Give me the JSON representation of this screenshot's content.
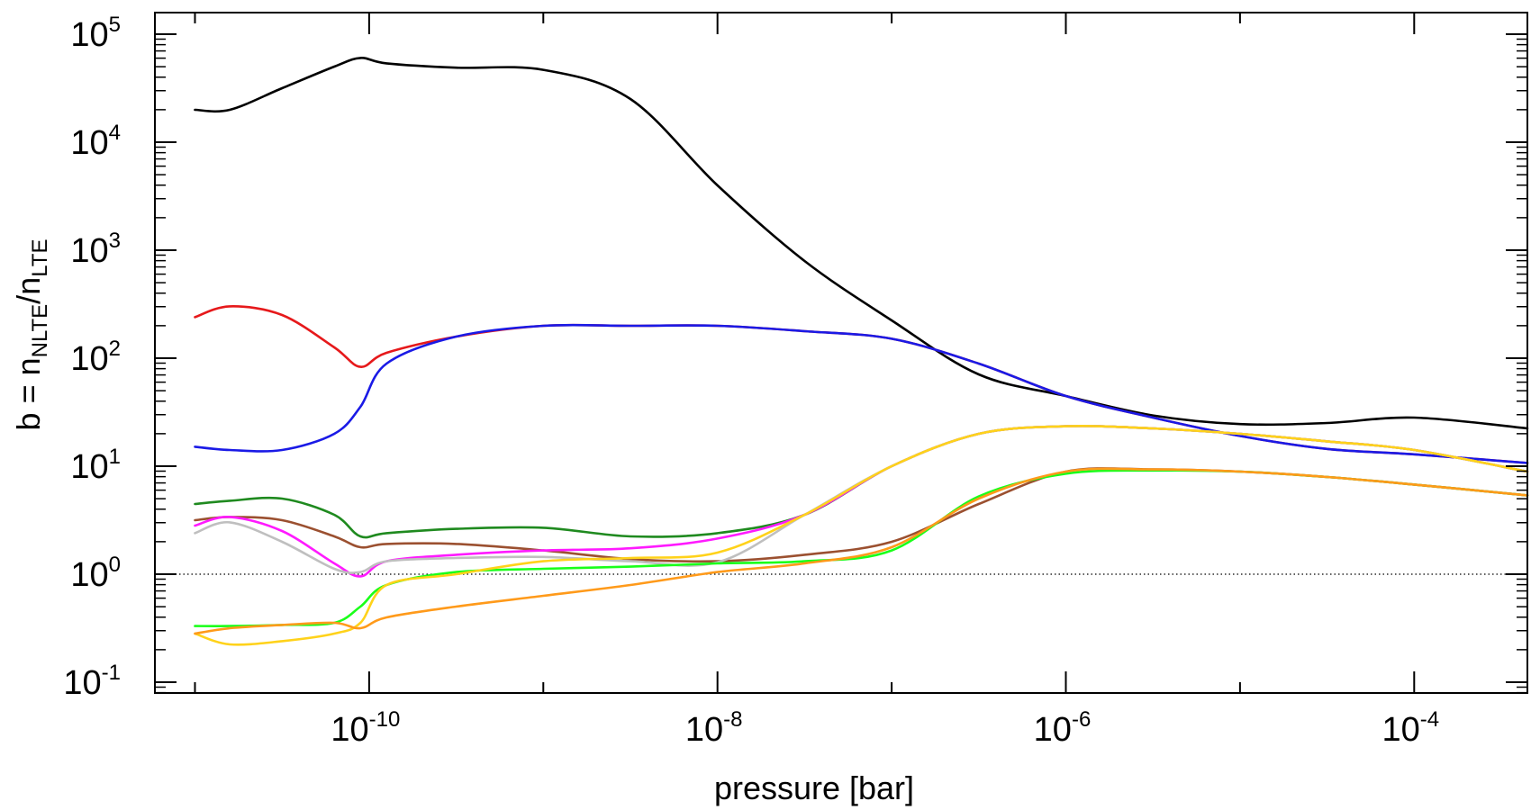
{
  "chart_data": {
    "type": "line",
    "title": "",
    "xlabel": "pressure [bar]",
    "ylabel": {
      "prefix": "b = n",
      "sub1": "NLTE",
      "mid": "/n",
      "sub2": "LTE"
    },
    "xscale": "log",
    "yscale": "log",
    "xlim_exp": [
      -11.23,
      -3.35
    ],
    "ylim_exp": [
      -1.1,
      5.2
    ],
    "x_ticks": [
      {
        "base": "10",
        "exp": "-10",
        "value_exp": -10
      },
      {
        "base": "10",
        "exp": "-8",
        "value_exp": -8
      },
      {
        "base": "10",
        "exp": "-6",
        "value_exp": -6
      },
      {
        "base": "10",
        "exp": "-4",
        "value_exp": -4
      }
    ],
    "y_ticks": [
      {
        "base": "10",
        "exp": "-1",
        "value_exp": -1
      },
      {
        "base": "10",
        "exp": "0",
        "value_exp": 0
      },
      {
        "base": "10",
        "exp": "1",
        "value_exp": 1
      },
      {
        "base": "10",
        "exp": "2",
        "value_exp": 2
      },
      {
        "base": "10",
        "exp": "3",
        "value_exp": 3
      },
      {
        "base": "10",
        "exp": "4",
        "value_exp": 4
      },
      {
        "base": "10",
        "exp": "5",
        "value_exp": 5
      }
    ],
    "reference_line": {
      "y_exp": 0,
      "style": "dotted"
    },
    "x_exp": [
      -11.0,
      -10.8,
      -10.5,
      -10.2,
      -10.05,
      -9.9,
      -9.5,
      -9.0,
      -8.5,
      -8.0,
      -7.5,
      -7.0,
      -6.5,
      -6.0,
      -5.5,
      -5.0,
      -4.5,
      -4.0,
      -3.35
    ],
    "series": [
      {
        "name": "black",
        "color": "#000000",
        "y_exp": [
          4.3,
          4.3,
          4.5,
          4.7,
          4.78,
          4.73,
          4.69,
          4.67,
          4.4,
          3.6,
          2.9,
          2.35,
          1.85,
          1.65,
          1.47,
          1.39,
          1.4,
          1.45,
          1.35
        ]
      },
      {
        "name": "red",
        "color": "#e6191b",
        "y_exp": [
          2.38,
          2.48,
          2.4,
          2.1,
          1.92,
          2.05,
          2.2,
          2.3,
          2.3,
          2.3,
          2.25,
          2.18,
          1.95,
          1.65,
          1.45,
          1.28,
          1.16,
          1.11,
          1.03
        ]
      },
      {
        "name": "blue",
        "color": "#1a1ae6",
        "y_exp": [
          1.18,
          1.15,
          1.15,
          1.3,
          1.55,
          1.95,
          2.2,
          2.3,
          2.3,
          2.3,
          2.25,
          2.18,
          1.95,
          1.65,
          1.45,
          1.28,
          1.16,
          1.11,
          1.03
        ]
      },
      {
        "name": "dark-green",
        "color": "#1f8a1f",
        "y_exp": [
          0.65,
          0.68,
          0.7,
          0.55,
          0.35,
          0.38,
          0.42,
          0.43,
          0.35,
          0.38,
          0.55,
          1.0,
          1.3,
          1.37,
          1.35,
          1.3,
          1.23,
          1.15,
          0.95
        ]
      },
      {
        "name": "brown",
        "color": "#9b5030",
        "y_exp": [
          0.5,
          0.53,
          0.5,
          0.35,
          0.25,
          0.28,
          0.28,
          0.22,
          0.14,
          0.12,
          0.18,
          0.3,
          0.65,
          0.95,
          0.97,
          0.95,
          0.9,
          0.83,
          0.73
        ]
      },
      {
        "name": "magenta",
        "color": "#ff1aff",
        "y_exp": [
          0.45,
          0.53,
          0.4,
          0.1,
          -0.02,
          0.12,
          0.18,
          0.22,
          0.24,
          0.33,
          0.55,
          1.0,
          1.3,
          1.37,
          1.35,
          1.3,
          1.23,
          1.15,
          0.95
        ]
      },
      {
        "name": "gray",
        "color": "#bfbfbf",
        "y_exp": [
          0.38,
          0.48,
          0.3,
          0.05,
          0.02,
          0.12,
          0.15,
          0.16,
          0.12,
          0.11,
          0.55,
          1.0,
          1.3,
          1.37,
          1.35,
          1.3,
          1.23,
          1.15,
          0.95
        ]
      },
      {
        "name": "green",
        "color": "#1aff1a",
        "y_exp": [
          -0.48,
          -0.48,
          -0.47,
          -0.45,
          -0.3,
          -0.1,
          0.02,
          0.05,
          0.07,
          0.1,
          0.12,
          0.22,
          0.72,
          0.93,
          0.96,
          0.95,
          0.9,
          0.83,
          0.73
        ]
      },
      {
        "name": "yellow",
        "color": "#ffd21a",
        "y_exp": [
          -0.55,
          -0.65,
          -0.62,
          -0.55,
          -0.45,
          -0.1,
          0.0,
          0.12,
          0.15,
          0.2,
          0.55,
          1.0,
          1.3,
          1.37,
          1.35,
          1.3,
          1.23,
          1.15,
          0.95
        ]
      },
      {
        "name": "orange",
        "color": "#ff9a1a",
        "y_exp": [
          -0.55,
          -0.5,
          -0.47,
          -0.45,
          -0.5,
          -0.4,
          -0.3,
          -0.2,
          -0.1,
          0.02,
          0.1,
          0.25,
          0.7,
          0.95,
          0.97,
          0.95,
          0.9,
          0.83,
          0.73
        ]
      }
    ]
  }
}
